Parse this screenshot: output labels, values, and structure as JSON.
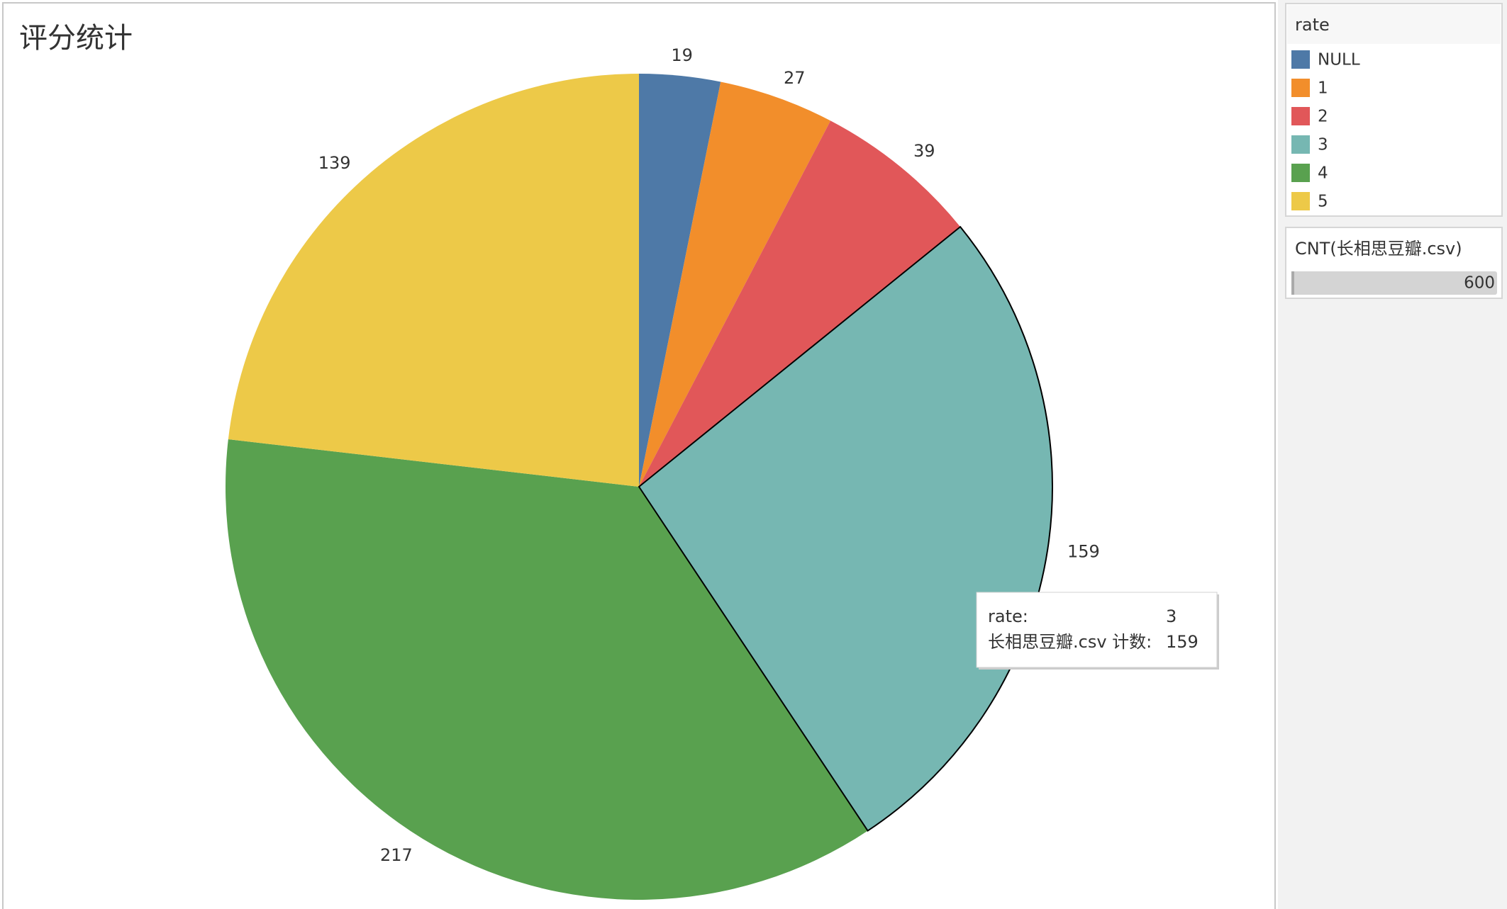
{
  "chart_data": {
    "type": "pie",
    "title": "评分统计",
    "categories": [
      "NULL",
      "1",
      "2",
      "3",
      "4",
      "5"
    ],
    "values": [
      19,
      27,
      39,
      159,
      217,
      139
    ],
    "colors": [
      "#4e79a7",
      "#f28e2b",
      "#e15759",
      "#76b7b2",
      "#59a14f",
      "#edc948"
    ],
    "legend_title": "rate",
    "size_legend": {
      "title": "CNT(长相思豆瓣.csv)",
      "max": 600
    },
    "tooltip": {
      "labels": [
        "rate:",
        "长相思豆瓣.csv 计数:"
      ]
    }
  }
}
